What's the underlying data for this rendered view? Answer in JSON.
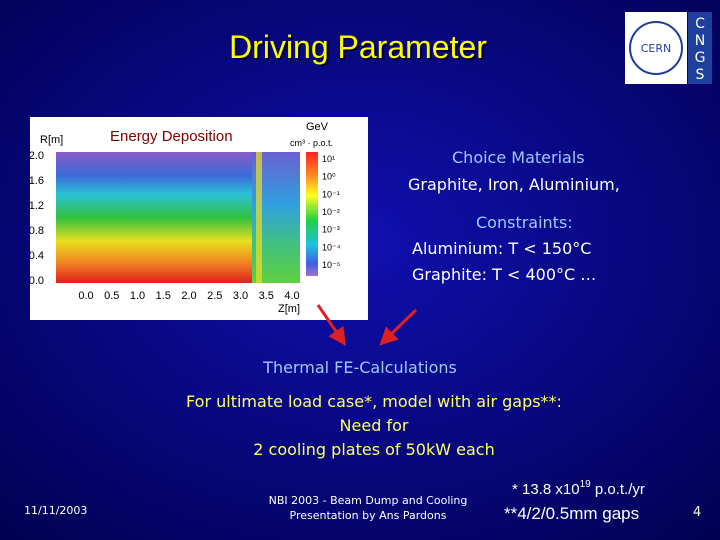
{
  "header": {
    "title": "Driving Parameter",
    "logo": {
      "name": "CERN",
      "letters": [
        "C",
        "N",
        "G",
        "S"
      ]
    }
  },
  "figure": {
    "label": "Energy Deposition",
    "y_axis": "R[m]",
    "y_ticks": [
      "2.0",
      "1.6",
      "1.2",
      "0.8",
      "0.4",
      "0.0"
    ],
    "x_axis": "Z[m]",
    "x_ticks": [
      "0.0",
      "0.5",
      "1.0",
      "1.5",
      "2.0",
      "2.5",
      "3.0",
      "3.5",
      "4.0"
    ],
    "colorbar_unit": "GeV",
    "colorbar_unit_denominator": "cm³ · p.o.t.",
    "colorbar_ticks": [
      "10¹",
      "10⁰",
      "10⁻¹",
      "10⁻²",
      "10⁻³",
      "10⁻⁴",
      "10⁻⁵"
    ]
  },
  "materials": {
    "heading": "Choice Materials",
    "text": "Graphite, Iron, Aluminium,"
  },
  "constraints": {
    "heading": "Constraints:",
    "items": [
      "Aluminium: T < 150°C",
      "Graphite: T < 400°C …"
    ]
  },
  "calculation": "Thermal FE-Calculations",
  "requirement": {
    "lines": [
      "For ultimate load case*, model with air gaps**:",
      "Need for",
      "2 cooling plates of 50kW each"
    ]
  },
  "footer": {
    "date": "11/11/2003",
    "source": [
      "NBI 2003 - Beam Dump and Cooling",
      "Presentation by Ans Pardons"
    ],
    "notes": {
      "first": "* 13.8 x10",
      "exponent": "19",
      "first_rest": " p.o.t./yr",
      "second": "**4/2/0.5mm gaps"
    },
    "page": "4"
  }
}
